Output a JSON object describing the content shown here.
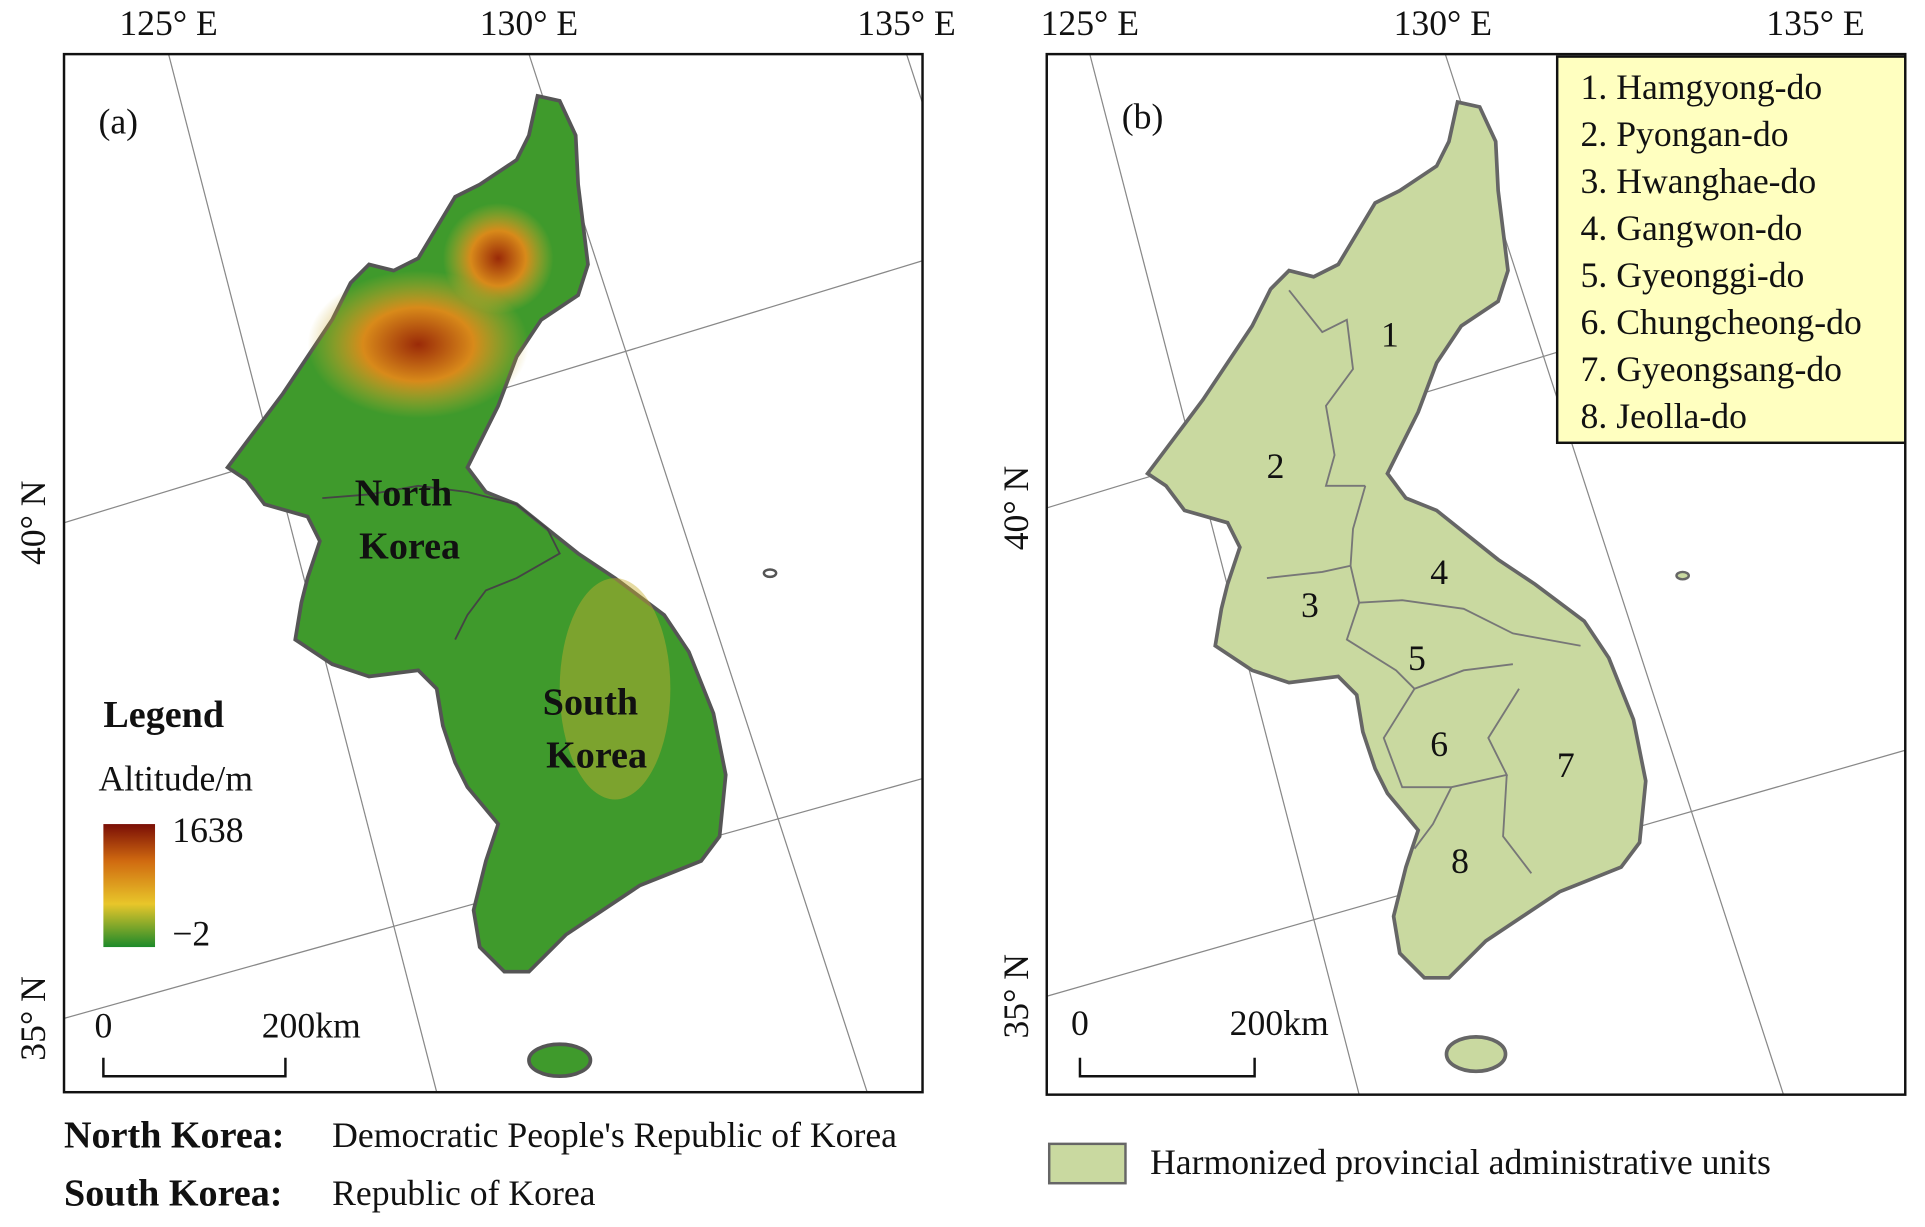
{
  "panel_a": {
    "label": "(a)",
    "lon_labels": [
      "125° E",
      "130° E",
      "135° E"
    ],
    "lat_labels": [
      "40° N",
      "35° N"
    ],
    "north_label": [
      "North",
      "Korea"
    ],
    "south_label": [
      "South",
      "Korea"
    ],
    "legend": {
      "title": "Legend",
      "subtitle": "Altitude/m",
      "max": "1638",
      "min": "−2"
    },
    "scale": {
      "start": "0",
      "end": "200km"
    }
  },
  "panel_b": {
    "label": "(b)",
    "lon_labels": [
      "125° E",
      "130° E",
      "135° E"
    ],
    "lat_labels": [
      "40° N",
      "35° N"
    ],
    "provinces": [
      "1",
      "2",
      "3",
      "4",
      "5",
      "6",
      "7",
      "8"
    ],
    "key": [
      "1. Hamgyong-do",
      "2. Pyongan-do",
      "3. Hwanghae-do",
      "4. Gangwon-do",
      "5. Gyeonggi-do",
      "6. Chungcheong-do",
      "7. Gyeongsang-do",
      "8. Jeolla-do"
    ],
    "scale": {
      "start": "0",
      "end": "200km"
    }
  },
  "footer": {
    "notes": [
      {
        "term": "North Korea:",
        "text": "Democratic People's Republic of Korea"
      },
      {
        "term": "South Korea:",
        "text": "Republic of Korea"
      }
    ],
    "swatch_label": "Harmonized provincial administrative units"
  }
}
